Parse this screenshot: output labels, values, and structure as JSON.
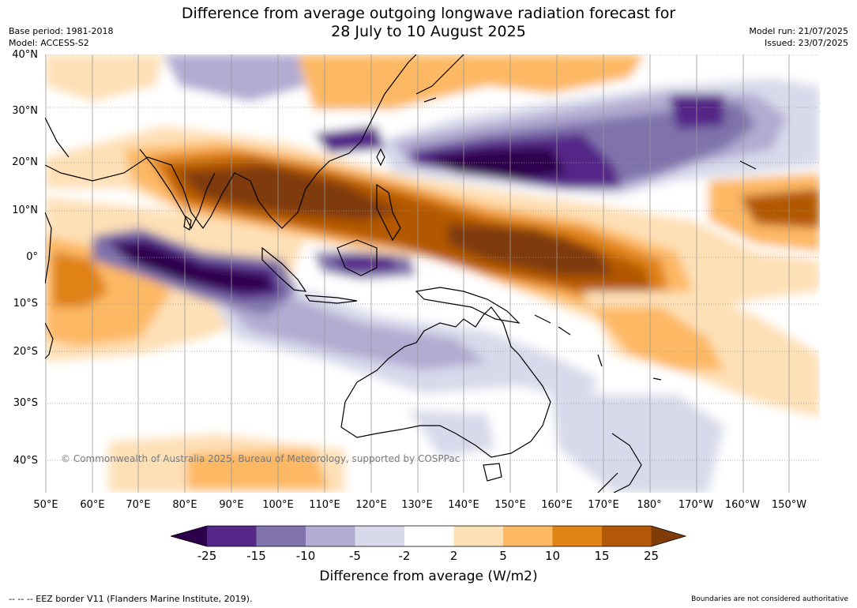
{
  "title": {
    "line1": "Difference from average outgoing longwave radiation forecast for",
    "line2": "28 July to 10 August 2025"
  },
  "meta_left": {
    "base_period": "Base period: 1981-2018",
    "model": "Model: ACCESS-S2"
  },
  "meta_right": {
    "model_run": "Model run: 21/07/2025",
    "issued": "Issued: 23/07/2025"
  },
  "lat_labels": [
    "40°N",
    "30°N",
    "20°N",
    "10°N",
    "0°",
    "10°S",
    "20°S",
    "30°S",
    "40°S"
  ],
  "lon_labels": [
    "50°E",
    "60°E",
    "70°E",
    "80°E",
    "90°E",
    "100°E",
    "110°E",
    "120°E",
    "130°E",
    "140°E",
    "150°E",
    "160°E",
    "170°E",
    "180°",
    "170°W",
    "160°W",
    "150°W"
  ],
  "copyright": "© Commonwealth of Australia 2025, Bureau of Meteorology, supported by COSPPac",
  "colorbar": {
    "ticks": [
      "-25",
      "-15",
      "-10",
      "-5",
      "-2",
      "2",
      "5",
      "10",
      "15",
      "25"
    ],
    "label": "Difference from average (W/m2)",
    "colors": {
      "lt-25": "#2d004b",
      "-25_-15": "#542788",
      "-15_-10": "#8073ac",
      "-10_-5": "#b2abd2",
      "-5_-2": "#d8daeb",
      "-2_2": "#ffffff",
      "2_5": "#fee0b6",
      "5_10": "#fdb863",
      "10_15": "#e08214",
      "15_25": "#b35806",
      "gt25": "#7f3b08"
    }
  },
  "footer_left": "--  --  -- EEZ border V11 (Flanders Marine Institute, 2019).",
  "footer_right": "Boundaries are not considered authoritative"
}
